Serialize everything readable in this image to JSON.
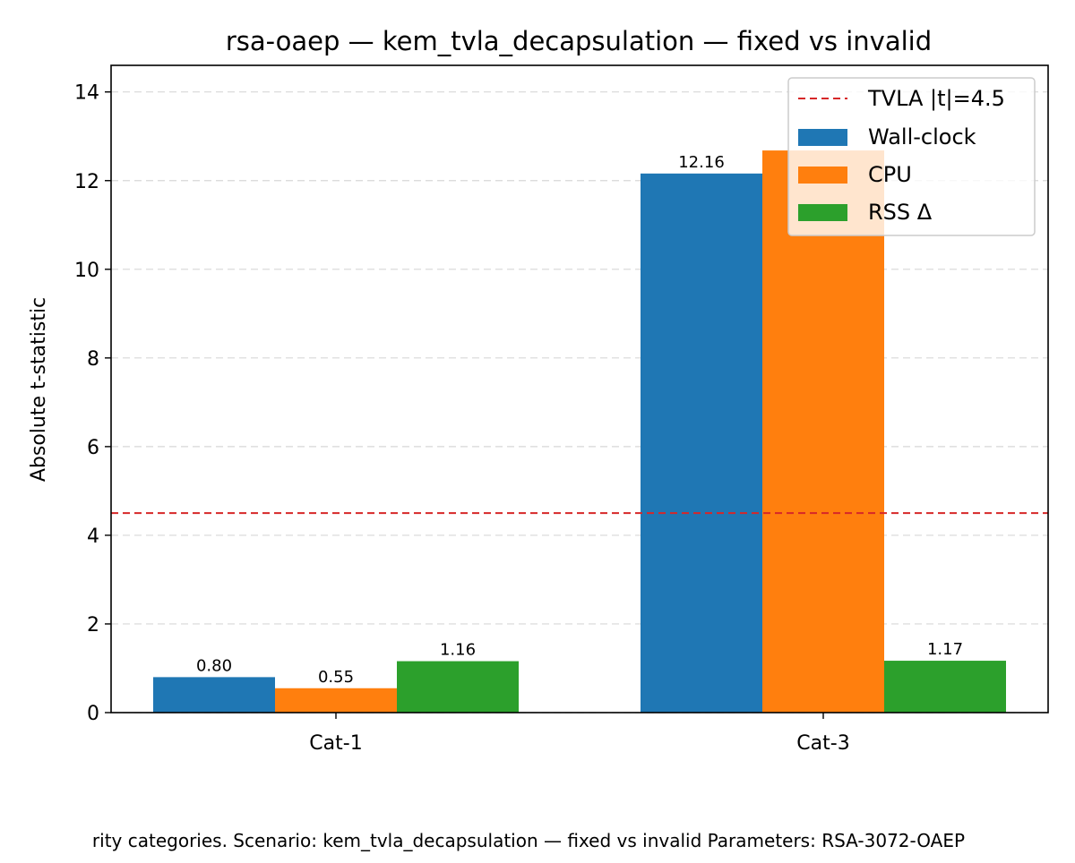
{
  "chart_data": {
    "type": "bar",
    "title": "rsa-oaep — kem_tvla_decapsulation — fixed vs invalid",
    "xlabel": "",
    "ylabel": "Absolute t-statistic",
    "categories": [
      "Cat-1",
      "Cat-3"
    ],
    "series": [
      {
        "name": "Wall-clock",
        "color": "#1f77b4",
        "values": [
          0.8,
          12.16
        ],
        "labels": [
          "0.80",
          "12.16"
        ]
      },
      {
        "name": "CPU",
        "color": "#ff7f0e",
        "values": [
          0.55,
          12.68
        ],
        "labels": [
          "0.55",
          null
        ]
      },
      {
        "name": "RSS Δ",
        "color": "#2ca02c",
        "values": [
          1.16,
          1.17
        ],
        "labels": [
          "1.16",
          "1.17"
        ]
      }
    ],
    "ylim": [
      0,
      14.6
    ],
    "yticks": [
      0,
      2,
      4,
      6,
      8,
      10,
      12,
      14
    ],
    "threshold": {
      "value": 4.5,
      "label": "TVLA |t|=4.5",
      "color": "#d62728",
      "style": "dashed"
    },
    "grid": "horizontal dashed",
    "legend_position": "top-right",
    "caption": "rity categories. Scenario: kem_tvla_decapsulation — fixed vs invalid Parameters: RSA-3072-OAEP"
  }
}
